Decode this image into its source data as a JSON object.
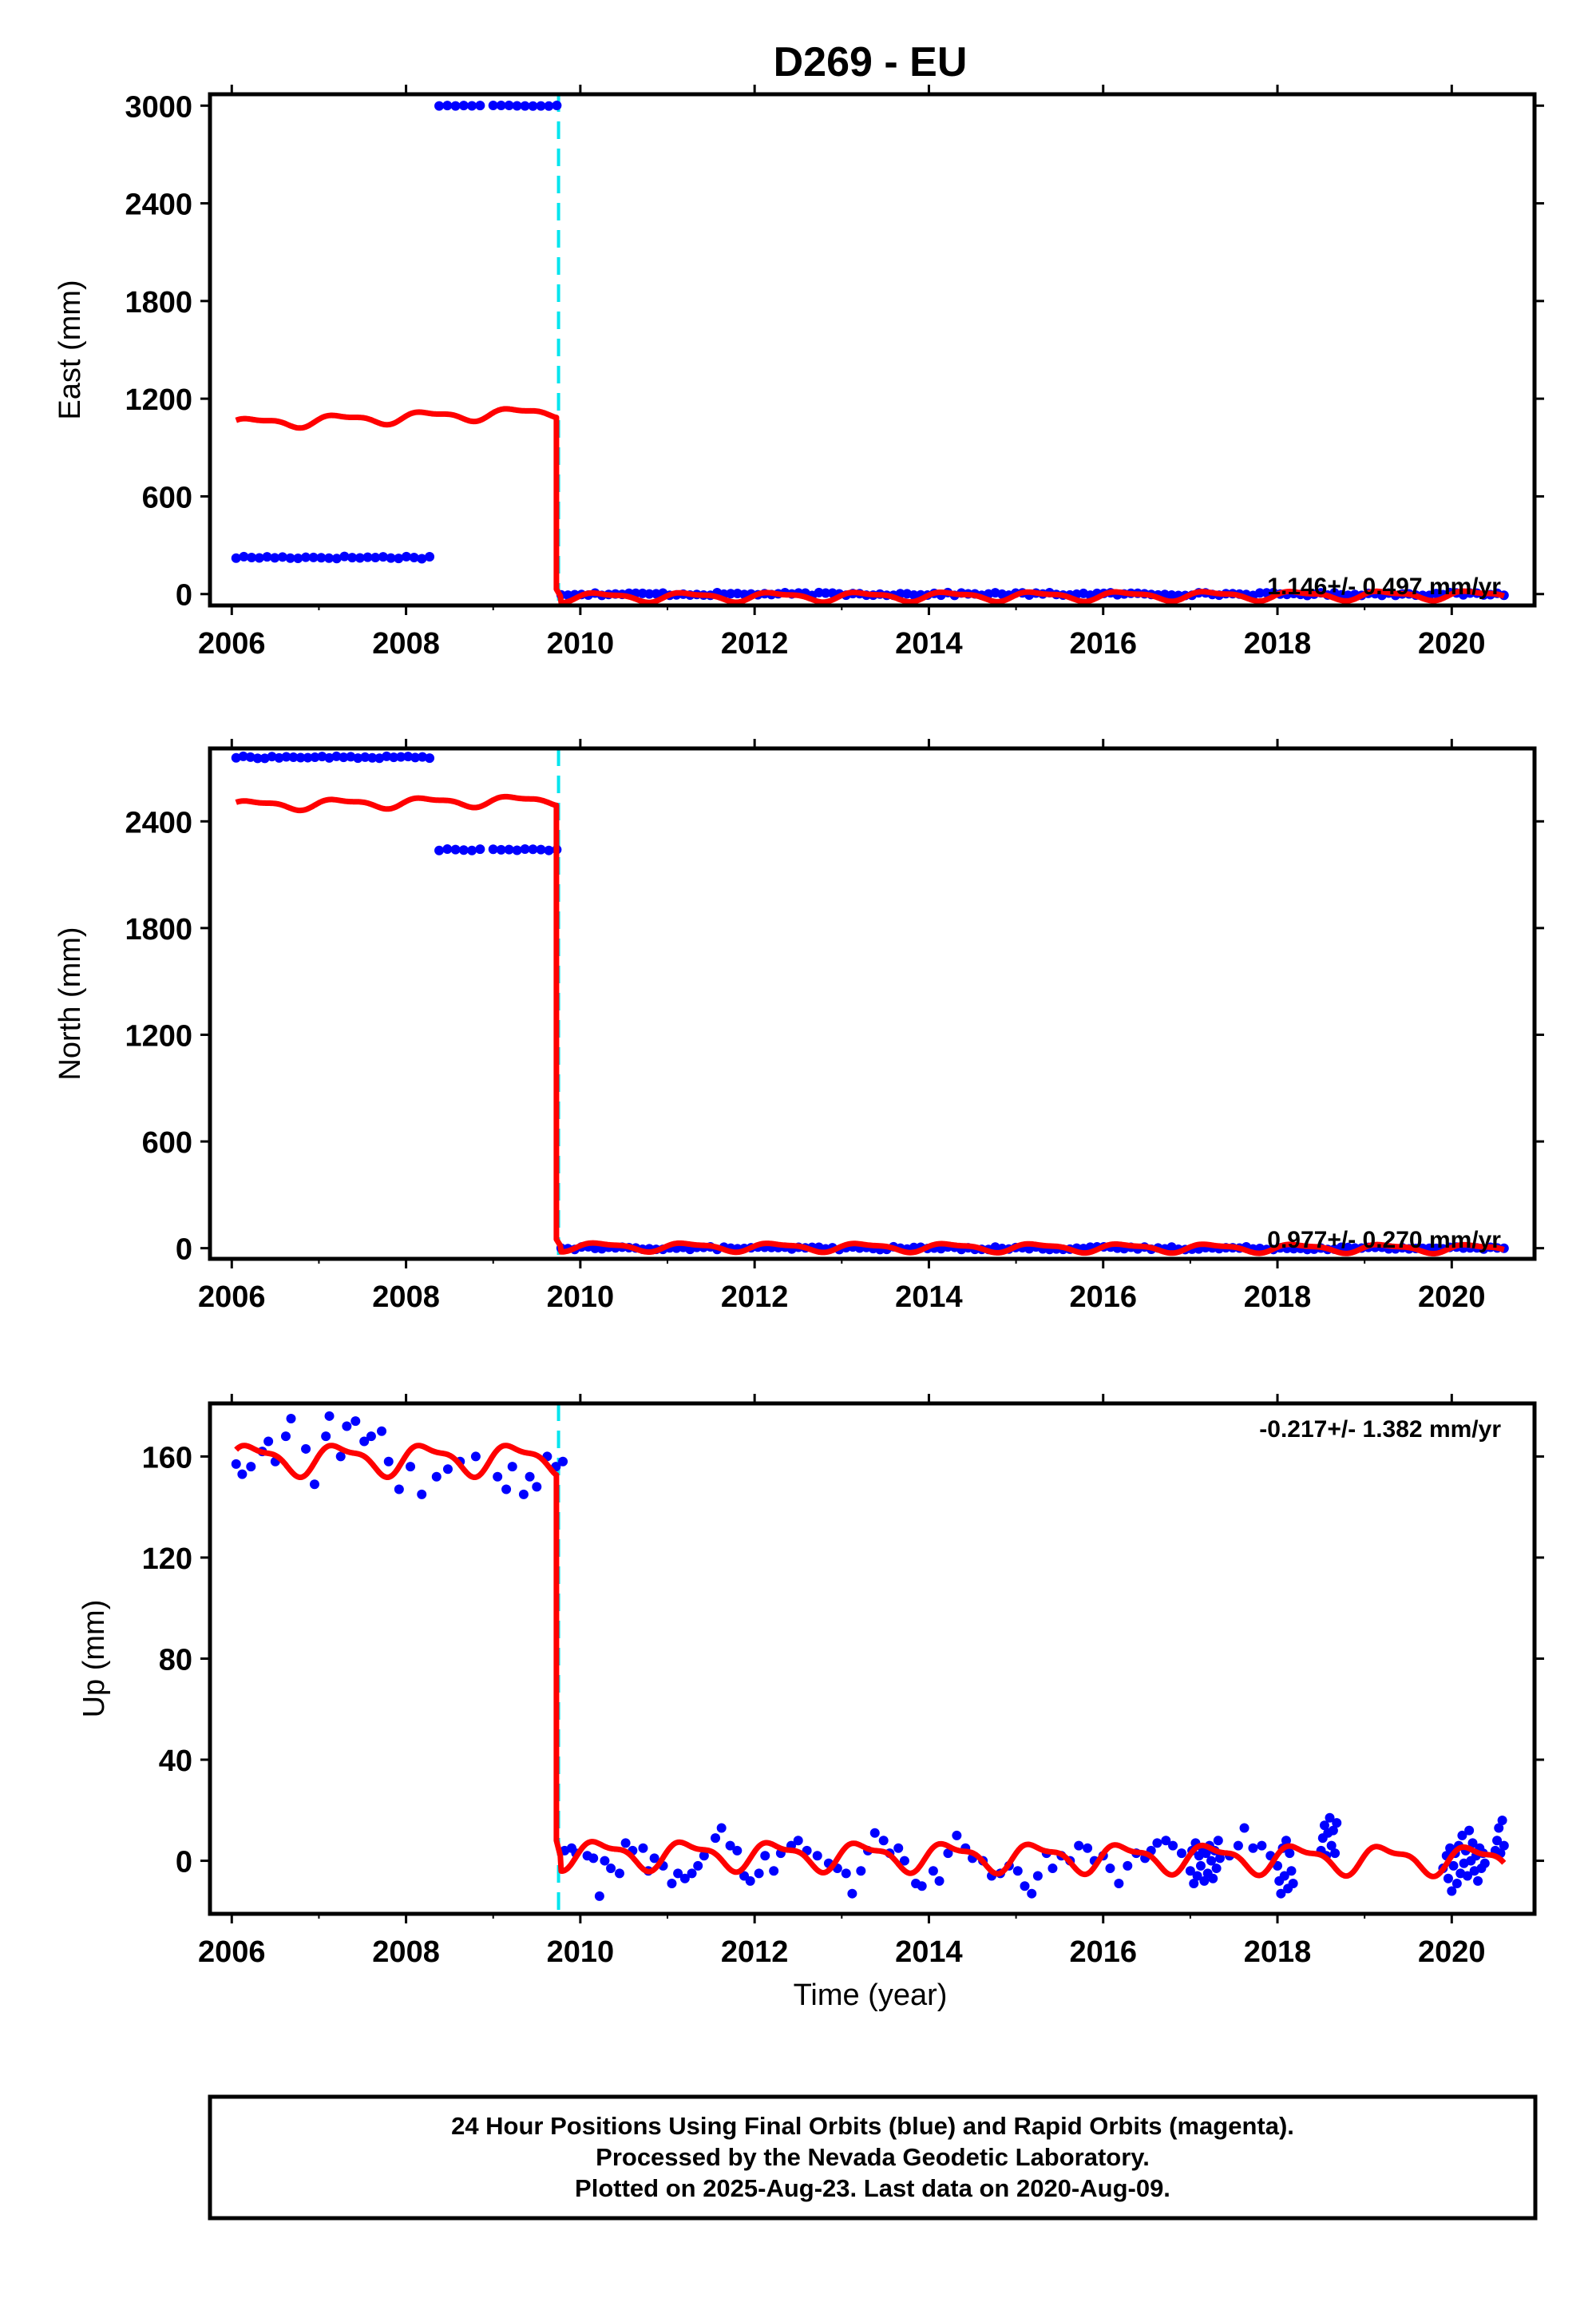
{
  "title": "D269 - EU",
  "xlabel": "Time (year)",
  "colors": {
    "final_orbits": "#0000ff",
    "model": "#ff0000",
    "offset_line": "#00e5ee",
    "frame": "#000000"
  },
  "footer": {
    "line1": "24 Hour Positions Using Final Orbits (blue) and Rapid Orbits (magenta).",
    "line2": "Processed by the Nevada Geodetic Laboratory.",
    "line3": "Plotted on 2025-Aug-23. Last data on 2020-Aug-09."
  },
  "chart_data": [
    {
      "type": "scatter",
      "component": "East",
      "ylabel": "East (mm)",
      "rate_label": "1.146+/- 0.497 mm/yr",
      "xlim": [
        2005.75,
        2020.95
      ],
      "ylim": [
        -70,
        3070
      ],
      "xticks": [
        "2006",
        "2008",
        "2010",
        "2012",
        "2014",
        "2016",
        "2018",
        "2020"
      ],
      "yticks": [
        "0",
        "600",
        "1200",
        "1800",
        "2400",
        "3000"
      ],
      "offset_epoch": 2009.75,
      "series": [
        {
          "role": "final_orbits",
          "segments": [
            {
              "x_start": 2006.05,
              "x_end": 2008.27,
              "y": 225,
              "spread": 8,
              "n": 26
            },
            {
              "x_start": 2008.38,
              "x_end": 2008.85,
              "y": 3000,
              "spread": 3,
              "n": 6
            },
            {
              "x_start": 2009.0,
              "x_end": 2009.73,
              "y": 3000,
              "spread": 3,
              "n": 9
            },
            {
              "x_start": 2009.78,
              "x_end": 2020.6,
              "y": 0,
              "spread": 9,
              "n": 140
            }
          ]
        },
        {
          "role": "model",
          "pre": {
            "x_start": 2006.05,
            "x_end": 2009.72,
            "base": 1185,
            "slope": 20,
            "annual_amp": 30,
            "semiannual_amp": 12
          },
          "post": {
            "x_start": 2009.77,
            "x_end": 2020.6,
            "base": -15,
            "slope": 1.146,
            "annual_amp": 25,
            "semiannual_amp": 10,
            "start_value": 30
          }
        }
      ]
    },
    {
      "type": "scatter",
      "component": "North",
      "ylabel": "North (mm)",
      "rate_label": "0.977+/- 0.270 mm/yr",
      "xlim": [
        2005.75,
        2020.95
      ],
      "ylim": [
        -60,
        2810
      ],
      "xticks": [
        "2006",
        "2008",
        "2010",
        "2012",
        "2014",
        "2016",
        "2018",
        "2020"
      ],
      "yticks": [
        "0",
        "600",
        "1200",
        "1800",
        "2400"
      ],
      "offset_epoch": 2009.75,
      "series": [
        {
          "role": "final_orbits",
          "segments": [
            {
              "x_start": 2006.05,
              "x_end": 2008.27,
              "y": 2760,
              "spread": 6,
              "n": 28
            },
            {
              "x_start": 2008.38,
              "x_end": 2008.85,
              "y": 2240,
              "spread": 4,
              "n": 6
            },
            {
              "x_start": 2009.0,
              "x_end": 2009.73,
              "y": 2240,
              "spread": 4,
              "n": 9
            },
            {
              "x_start": 2009.78,
              "x_end": 2020.6,
              "y": 0,
              "spread": 8,
              "n": 140
            }
          ]
        },
        {
          "role": "model",
          "pre": {
            "x_start": 2006.05,
            "x_end": 2009.72,
            "base": 2545,
            "slope": 8,
            "annual_amp": 25,
            "semiannual_amp": 10
          },
          "post": {
            "x_start": 2009.77,
            "x_end": 2020.6,
            "base": 5,
            "slope": -1,
            "annual_amp": 22,
            "semiannual_amp": 8,
            "start_value": 50
          }
        }
      ]
    },
    {
      "type": "scatter",
      "component": "Up",
      "ylabel": "Up (mm)",
      "rate_label": "-0.217+/- 1.382 mm/yr",
      "xlim": [
        2005.75,
        2020.95
      ],
      "ylim": [
        -21,
        181
      ],
      "xticks": [
        "2006",
        "2008",
        "2010",
        "2012",
        "2014",
        "2016",
        "2018",
        "2020"
      ],
      "yticks": [
        "0",
        "40",
        "80",
        "120",
        "160"
      ],
      "offset_epoch": 2009.75,
      "series": [
        {
          "role": "final_orbits",
          "points": [
            [
              2006.05,
              157
            ],
            [
              2006.12,
              153
            ],
            [
              2006.22,
              156
            ],
            [
              2006.35,
              162
            ],
            [
              2006.42,
              166
            ],
            [
              2006.5,
              158
            ],
            [
              2006.62,
              168
            ],
            [
              2006.68,
              175
            ],
            [
              2006.85,
              163
            ],
            [
              2006.95,
              149
            ],
            [
              2007.08,
              168
            ],
            [
              2007.12,
              176
            ],
            [
              2007.25,
              160
            ],
            [
              2007.32,
              172
            ],
            [
              2007.42,
              174
            ],
            [
              2007.52,
              166
            ],
            [
              2007.6,
              168
            ],
            [
              2007.72,
              170
            ],
            [
              2007.8,
              158
            ],
            [
              2007.92,
              147
            ],
            [
              2008.05,
              156
            ],
            [
              2008.18,
              145
            ],
            [
              2008.35,
              152
            ],
            [
              2008.48,
              155
            ],
            [
              2008.62,
              158
            ],
            [
              2008.8,
              160
            ],
            [
              2009.05,
              152
            ],
            [
              2009.15,
              147
            ],
            [
              2009.22,
              156
            ],
            [
              2009.35,
              145
            ],
            [
              2009.42,
              152
            ],
            [
              2009.5,
              148
            ],
            [
              2009.62,
              160
            ],
            [
              2009.72,
              156
            ],
            [
              2009.8,
              158
            ],
            [
              2009.82,
              4
            ],
            [
              2009.9,
              5
            ],
            [
              2009.95,
              3
            ],
            [
              2010.08,
              2
            ],
            [
              2010.15,
              1
            ],
            [
              2010.22,
              -14
            ],
            [
              2010.28,
              0
            ],
            [
              2010.35,
              -3
            ],
            [
              2010.45,
              -5
            ],
            [
              2010.52,
              7
            ],
            [
              2010.6,
              4
            ],
            [
              2010.72,
              5
            ],
            [
              2010.78,
              -4
            ],
            [
              2010.85,
              1
            ],
            [
              2010.95,
              -2
            ],
            [
              2011.05,
              -9
            ],
            [
              2011.12,
              -5
            ],
            [
              2011.2,
              -7
            ],
            [
              2011.28,
              -5
            ],
            [
              2011.35,
              -2
            ],
            [
              2011.42,
              2
            ],
            [
              2011.55,
              9
            ],
            [
              2011.62,
              13
            ],
            [
              2011.72,
              6
            ],
            [
              2011.8,
              4
            ],
            [
              2011.88,
              -6
            ],
            [
              2011.95,
              -8
            ],
            [
              2012.05,
              -5
            ],
            [
              2012.12,
              2
            ],
            [
              2012.22,
              -4
            ],
            [
              2012.3,
              3
            ],
            [
              2012.42,
              6
            ],
            [
              2012.5,
              8
            ],
            [
              2012.6,
              4
            ],
            [
              2012.72,
              2
            ],
            [
              2012.85,
              -1
            ],
            [
              2012.95,
              -3
            ],
            [
              2013.05,
              -5
            ],
            [
              2013.12,
              -13
            ],
            [
              2013.22,
              -4
            ],
            [
              2013.3,
              4
            ],
            [
              2013.38,
              11
            ],
            [
              2013.48,
              8
            ],
            [
              2013.55,
              3
            ],
            [
              2013.65,
              5
            ],
            [
              2013.72,
              0
            ],
            [
              2013.85,
              -9
            ],
            [
              2013.92,
              -10
            ],
            [
              2014.05,
              -4
            ],
            [
              2014.12,
              -8
            ],
            [
              2014.22,
              3
            ],
            [
              2014.32,
              10
            ],
            [
              2014.42,
              5
            ],
            [
              2014.5,
              1
            ],
            [
              2014.62,
              0
            ],
            [
              2014.72,
              -6
            ],
            [
              2014.82,
              -5
            ],
            [
              2014.92,
              -2
            ],
            [
              2015.02,
              -4
            ],
            [
              2015.1,
              -10
            ],
            [
              2015.18,
              -13
            ],
            [
              2015.25,
              -6
            ],
            [
              2015.35,
              3
            ],
            [
              2015.42,
              -3
            ],
            [
              2015.52,
              2
            ],
            [
              2015.62,
              0
            ],
            [
              2015.72,
              6
            ],
            [
              2015.82,
              5
            ],
            [
              2015.9,
              0
            ],
            [
              2016.0,
              2
            ],
            [
              2016.08,
              -3
            ],
            [
              2016.18,
              -9
            ],
            [
              2016.28,
              -2
            ],
            [
              2016.38,
              3
            ],
            [
              2016.48,
              1
            ],
            [
              2016.55,
              4
            ],
            [
              2016.62,
              7
            ],
            [
              2016.72,
              8
            ],
            [
              2016.8,
              6
            ],
            [
              2016.9,
              3
            ],
            [
              2017.0,
              -4
            ],
            [
              2017.02,
              4
            ],
            [
              2017.04,
              -9
            ],
            [
              2017.06,
              7
            ],
            [
              2017.08,
              -6
            ],
            [
              2017.1,
              2
            ],
            [
              2017.12,
              -2
            ],
            [
              2017.14,
              5
            ],
            [
              2017.16,
              -8
            ],
            [
              2017.18,
              3
            ],
            [
              2017.2,
              -5
            ],
            [
              2017.22,
              6
            ],
            [
              2017.24,
              0
            ],
            [
              2017.26,
              -7
            ],
            [
              2017.28,
              4
            ],
            [
              2017.3,
              -3
            ],
            [
              2017.32,
              8
            ],
            [
              2017.34,
              1
            ],
            [
              2017.45,
              2
            ],
            [
              2017.55,
              6
            ],
            [
              2017.62,
              13
            ],
            [
              2017.72,
              5
            ],
            [
              2017.82,
              6
            ],
            [
              2017.92,
              2
            ],
            [
              2018.0,
              -2
            ],
            [
              2018.02,
              -8
            ],
            [
              2018.04,
              -13
            ],
            [
              2018.06,
              5
            ],
            [
              2018.08,
              -6
            ],
            [
              2018.1,
              8
            ],
            [
              2018.12,
              -11
            ],
            [
              2018.14,
              3
            ],
            [
              2018.16,
              -4
            ],
            [
              2018.18,
              -9
            ],
            [
              2018.5,
              4
            ],
            [
              2018.52,
              9
            ],
            [
              2018.54,
              14
            ],
            [
              2018.56,
              2
            ],
            [
              2018.58,
              11
            ],
            [
              2018.6,
              17
            ],
            [
              2018.62,
              6
            ],
            [
              2018.64,
              12
            ],
            [
              2018.66,
              3
            ],
            [
              2018.68,
              15
            ],
            [
              2019.9,
              -3
            ],
            [
              2019.94,
              2
            ],
            [
              2019.96,
              -7
            ],
            [
              2019.98,
              5
            ],
            [
              2020.0,
              -12
            ],
            [
              2020.02,
              -2
            ],
            [
              2020.04,
              3
            ],
            [
              2020.06,
              -9
            ],
            [
              2020.08,
              6
            ],
            [
              2020.1,
              -5
            ],
            [
              2020.12,
              10
            ],
            [
              2020.14,
              -1
            ],
            [
              2020.16,
              4
            ],
            [
              2020.18,
              -6
            ],
            [
              2020.2,
              12
            ],
            [
              2020.22,
              0
            ],
            [
              2020.24,
              7
            ],
            [
              2020.26,
              -4
            ],
            [
              2020.28,
              2
            ],
            [
              2020.3,
              -8
            ],
            [
              2020.32,
              5
            ],
            [
              2020.34,
              -3
            ],
            [
              2020.36,
              3
            ],
            [
              2020.38,
              -1
            ],
            [
              2020.5,
              4
            ],
            [
              2020.52,
              8
            ],
            [
              2020.54,
              13
            ],
            [
              2020.56,
              3
            ],
            [
              2020.58,
              16
            ],
            [
              2020.6,
              6
            ]
          ]
        },
        {
          "role": "model",
          "pre": {
            "x_start": 2006.05,
            "x_end": 2009.72,
            "base": 159,
            "slope": 0,
            "annual_amp": 5.5,
            "semiannual_amp": 2
          },
          "post": {
            "x_start": 2009.77,
            "x_end": 2020.6,
            "base": 2,
            "slope": -0.217,
            "annual_amp": 5,
            "semiannual_amp": 2,
            "start_value": 8
          }
        }
      ]
    }
  ]
}
